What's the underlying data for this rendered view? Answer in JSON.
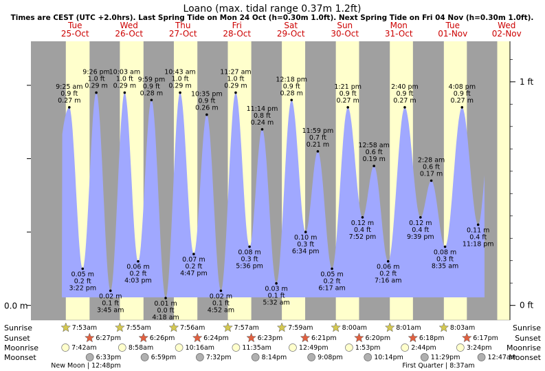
{
  "header": {
    "title": "Loano (max. tidal range 0.37m 1.2ft)",
    "subtitle": "Times are CEST (UTC +2.0hrs). Last Spring Tide on Mon 24 Oct (h=0.30m 1.0ft). Next Spring Tide on Fri 04 Nov (h=0.30m 1.0ft)."
  },
  "colors": {
    "night": "#a0a0a0",
    "day": "#ffffcc",
    "water": "#a0a8ff",
    "day_label": "#cc0000",
    "sun_star": "#d4c850",
    "sunset_star": "#e06040",
    "moonrise": "#ffffcc",
    "moonset": "#b0b0b0"
  },
  "chart_data": {
    "type": "area",
    "title": "Loano (max. tidal range 0.37m 1.2ft)",
    "days": [
      {
        "weekday": "Tue",
        "date": "25-Oct"
      },
      {
        "weekday": "Wed",
        "date": "26-Oct"
      },
      {
        "weekday": "Thu",
        "date": "27-Oct"
      },
      {
        "weekday": "Fri",
        "date": "28-Oct"
      },
      {
        "weekday": "Sat",
        "date": "29-Oct"
      },
      {
        "weekday": "Sun",
        "date": "30-Oct"
      },
      {
        "weekday": "Mon",
        "date": "31-Oct"
      },
      {
        "weekday": "Tue",
        "date": "01-Nov"
      },
      {
        "weekday": "Wed",
        "date": "02-Nov"
      }
    ],
    "y_left_label": "0.0 m",
    "y_right_labels": [
      "1 ft",
      "0 ft"
    ],
    "y_unit": "m",
    "ylim": [
      -0.02,
      0.36
    ],
    "tides": [
      {
        "day": 0,
        "time": "9:25 am",
        "ft": "0.9 ft",
        "m": "0.27 m",
        "height": 0.27,
        "type": "high"
      },
      {
        "day": 0,
        "time": "3:22 pm",
        "ft": "0.2 ft",
        "m": "0.05 m",
        "height": 0.05,
        "type": "low"
      },
      {
        "day": 0,
        "time": "9:26 pm",
        "ft": "1.0 ft",
        "m": "0.29 m",
        "height": 0.29,
        "type": "high"
      },
      {
        "day": 1,
        "time": "3:45 am",
        "ft": "0.1 ft",
        "m": "0.02 m",
        "height": 0.02,
        "type": "low"
      },
      {
        "day": 1,
        "time": "10:03 am",
        "ft": "1.0 ft",
        "m": "0.29 m",
        "height": 0.29,
        "type": "high"
      },
      {
        "day": 1,
        "time": "4:03 pm",
        "ft": "0.2 ft",
        "m": "0.06 m",
        "height": 0.06,
        "type": "low"
      },
      {
        "day": 1,
        "time": "9:59 pm",
        "ft": "0.9 ft",
        "m": "0.28 m",
        "height": 0.28,
        "type": "high"
      },
      {
        "day": 2,
        "time": "4:18 am",
        "ft": "0.0 ft",
        "m": "0.01 m",
        "height": 0.01,
        "type": "low"
      },
      {
        "day": 2,
        "time": "10:43 am",
        "ft": "1.0 ft",
        "m": "0.29 m",
        "height": 0.29,
        "type": "high"
      },
      {
        "day": 2,
        "time": "4:47 pm",
        "ft": "0.2 ft",
        "m": "0.07 m",
        "height": 0.07,
        "type": "low"
      },
      {
        "day": 2,
        "time": "10:35 pm",
        "ft": "0.9 ft",
        "m": "0.26 m",
        "height": 0.26,
        "type": "high"
      },
      {
        "day": 3,
        "time": "4:52 am",
        "ft": "0.1 ft",
        "m": "0.02 m",
        "height": 0.02,
        "type": "low"
      },
      {
        "day": 3,
        "time": "11:27 am",
        "ft": "1.0 ft",
        "m": "0.29 m",
        "height": 0.29,
        "type": "high"
      },
      {
        "day": 3,
        "time": "5:36 pm",
        "ft": "0.3 ft",
        "m": "0.08 m",
        "height": 0.08,
        "type": "low"
      },
      {
        "day": 3,
        "time": "11:14 pm",
        "ft": "0.8 ft",
        "m": "0.24 m",
        "height": 0.24,
        "type": "high"
      },
      {
        "day": 4,
        "time": "5:32 am",
        "ft": "0.1 ft",
        "m": "0.03 m",
        "height": 0.03,
        "type": "low"
      },
      {
        "day": 4,
        "time": "12:18 pm",
        "ft": "0.9 ft",
        "m": "0.28 m",
        "height": 0.28,
        "type": "high"
      },
      {
        "day": 4,
        "time": "6:34 pm",
        "ft": "0.3 ft",
        "m": "0.10 m",
        "height": 0.1,
        "type": "low"
      },
      {
        "day": 4,
        "time": "11:59 pm",
        "ft": "0.7 ft",
        "m": "0.21 m",
        "height": 0.21,
        "type": "high"
      },
      {
        "day": 5,
        "time": "6:17 am",
        "ft": "0.2 ft",
        "m": "0.05 m",
        "height": 0.05,
        "type": "low"
      },
      {
        "day": 5,
        "time": "1:21 pm",
        "ft": "0.9 ft",
        "m": "0.27 m",
        "height": 0.27,
        "type": "high"
      },
      {
        "day": 5,
        "time": "7:52 pm",
        "ft": "0.4 ft",
        "m": "0.12 m",
        "height": 0.12,
        "type": "low"
      },
      {
        "day": 6,
        "time": "12:58 am",
        "ft": "0.6 ft",
        "m": "0.19 m",
        "height": 0.19,
        "type": "high"
      },
      {
        "day": 6,
        "time": "7:16 am",
        "ft": "0.2 ft",
        "m": "0.06 m",
        "height": 0.06,
        "type": "low"
      },
      {
        "day": 6,
        "time": "2:40 pm",
        "ft": "0.9 ft",
        "m": "0.27 m",
        "height": 0.27,
        "type": "high"
      },
      {
        "day": 6,
        "time": "9:39 pm",
        "ft": "0.4 ft",
        "m": "0.12 m",
        "height": 0.12,
        "type": "low"
      },
      {
        "day": 7,
        "time": "2:28 am",
        "ft": "0.6 ft",
        "m": "0.17 m",
        "height": 0.17,
        "type": "high"
      },
      {
        "day": 7,
        "time": "8:35 am",
        "ft": "0.3 ft",
        "m": "0.08 m",
        "height": 0.08,
        "type": "low"
      },
      {
        "day": 7,
        "time": "4:08 pm",
        "ft": "0.9 ft",
        "m": "0.27 m",
        "height": 0.27,
        "type": "high"
      },
      {
        "day": 7,
        "time": "11:18 pm",
        "ft": "0.4 ft",
        "m": "0.11 m",
        "height": 0.11,
        "type": "low"
      }
    ],
    "daylight": [
      {
        "day": 0,
        "rise": "7:53am",
        "set": "6:27pm"
      },
      {
        "day": 1,
        "rise": "7:55am",
        "set": "6:26pm"
      },
      {
        "day": 2,
        "rise": "7:56am",
        "set": "6:24pm"
      },
      {
        "day": 3,
        "rise": "7:57am",
        "set": "6:23pm"
      },
      {
        "day": 4,
        "rise": "7:59am",
        "set": "6:21pm"
      },
      {
        "day": 5,
        "rise": "8:00am",
        "set": "6:20pm"
      },
      {
        "day": 6,
        "rise": "8:01am",
        "set": "6:18pm"
      },
      {
        "day": 7,
        "rise": "8:03am",
        "set": "6:17pm"
      },
      {
        "day": 8,
        "rise": "",
        "set": ""
      }
    ],
    "rows": [
      "Sunrise",
      "Sunset",
      "Moonrise",
      "Moonset"
    ],
    "moonrise": [
      {
        "day": 0,
        "time": "7:42am"
      },
      {
        "day": 1,
        "time": "8:58am"
      },
      {
        "day": 2,
        "time": "10:16am"
      },
      {
        "day": 3,
        "time": "11:35am"
      },
      {
        "day": 4,
        "time": "12:49pm"
      },
      {
        "day": 5,
        "time": "1:53pm"
      },
      {
        "day": 6,
        "time": "2:44pm"
      },
      {
        "day": 7,
        "time": "3:24pm"
      }
    ],
    "moonset": [
      {
        "day": 0,
        "time": "6:33pm"
      },
      {
        "day": 1,
        "time": "6:59pm"
      },
      {
        "day": 2,
        "time": "7:32pm"
      },
      {
        "day": 3,
        "time": "8:14pm"
      },
      {
        "day": 4,
        "time": "9:08pm"
      },
      {
        "day": 5,
        "time": "10:14pm"
      },
      {
        "day": 6,
        "time": "11:29pm"
      },
      {
        "day": 8,
        "time": "12:47am"
      }
    ],
    "moon_phases": [
      {
        "label": "New Moon",
        "time": "12:48pm"
      },
      {
        "label": "First Quarter",
        "time": "8:37am"
      }
    ]
  }
}
